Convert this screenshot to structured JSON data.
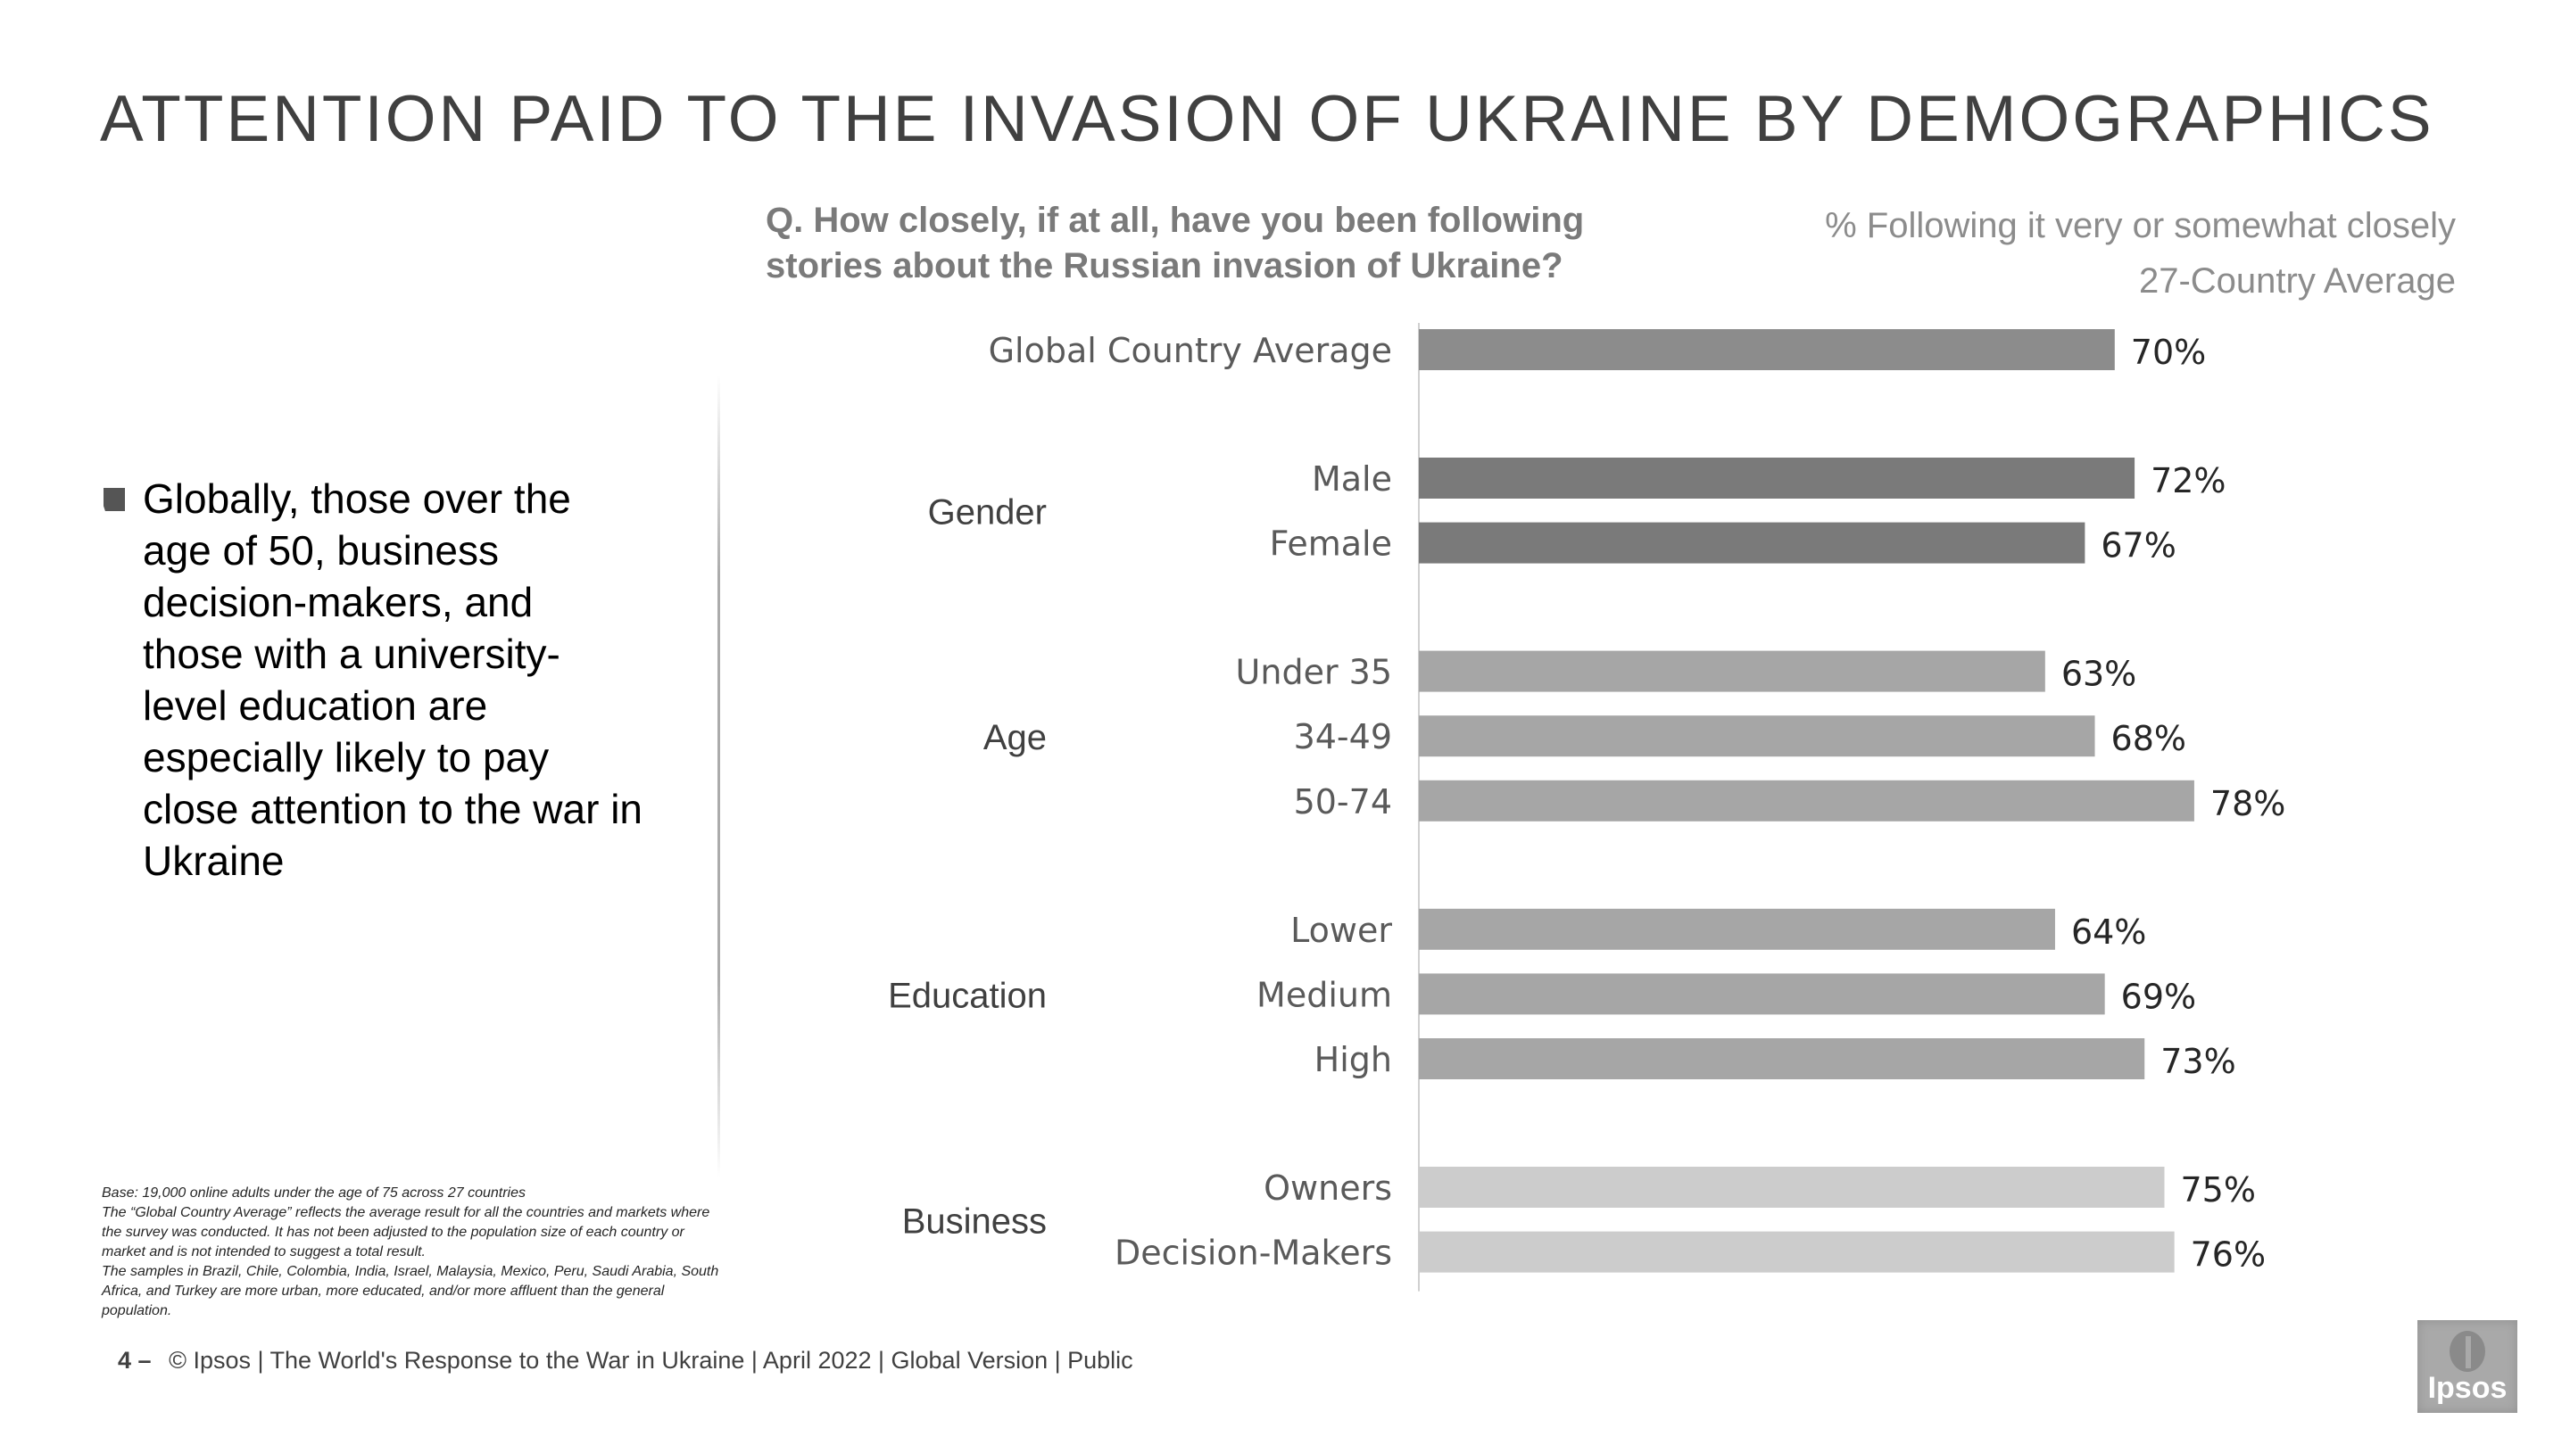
{
  "title": "ATTENTION PAID TO THE INVASION OF UKRAINE BY DEMOGRAPHICS",
  "question": "Q. How closely, if at all, have you been following stories about the Russian invasion of Ukraine?",
  "metric": {
    "label": "% Following it very or somewhat closely",
    "sublabel": "27-Country Average"
  },
  "bullet": "Globally, those over the age of 50, business decision-makers, and those with a university-level education are especially likely to pay close attention to the war in Ukraine",
  "footnote": [
    "Base: 19,000 online adults under the age of 75 across 27 countries",
    "The “Global Country Average” reflects the average result for all the countries and markets where the survey was conducted. It has not been adjusted to the population size of each country or market and is not intended to suggest a total result.",
    "The samples in Brazil, Chile, Colombia, India, Israel, Malaysia, Mexico, Peru, Saudi Arabia,  South Africa, and Turkey are more urban, more educated, and/or more affluent than the general population."
  ],
  "footer": {
    "page_number": "4 –",
    "text": "© Ipsos | The World's Response to the War in Ukraine | April 2022 | Global Version | Public"
  },
  "logo_text": "Ipsos",
  "chart_data": {
    "type": "bar",
    "orientation": "horizontal",
    "xlim": [
      0,
      100
    ],
    "value_suffix": "%",
    "groups": [
      {
        "name": "",
        "color": "#8c8c8c",
        "categories": [
          "Global Country Average"
        ],
        "values": [
          70
        ]
      },
      {
        "name": "Gender",
        "color": "#7a7a7a",
        "categories": [
          "Male",
          "Female"
        ],
        "values": [
          72,
          67
        ]
      },
      {
        "name": "Age",
        "color": "#a6a6a6",
        "categories": [
          "Under 35",
          "34-49",
          "50-74"
        ],
        "values": [
          63,
          68,
          78
        ]
      },
      {
        "name": "Education",
        "color": "#a6a6a6",
        "categories": [
          "Lower",
          "Medium",
          "High"
        ],
        "values": [
          64,
          69,
          73
        ]
      },
      {
        "name": "Business",
        "color": "#cccccc",
        "categories": [
          "Owners",
          "Decision-Makers"
        ],
        "values": [
          75,
          76
        ]
      }
    ]
  }
}
